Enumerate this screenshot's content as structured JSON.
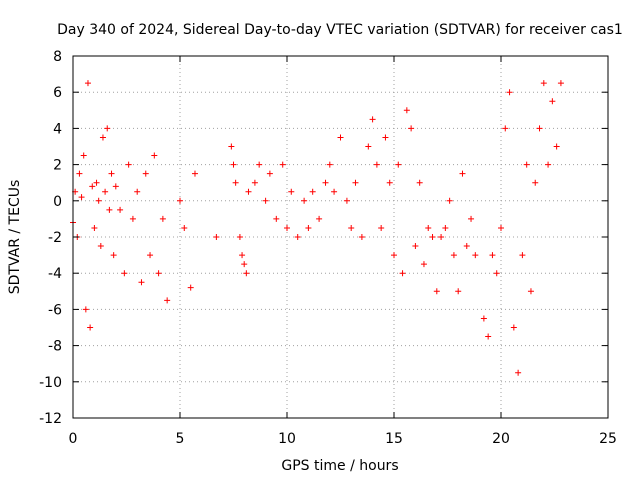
{
  "chart_data": {
    "type": "scatter",
    "title": "Day 340 of 2024, Sidereal Day-to-day VTEC variation (SDTVAR) for receiver cas1",
    "xlabel": "GPS time / hours",
    "ylabel": "SDTVAR / TECUs",
    "xlim": [
      0,
      25
    ],
    "ylim": [
      -12,
      8
    ],
    "xticks": [
      "0",
      "5",
      "10",
      "15",
      "20",
      "25"
    ],
    "yticks": [
      "-12",
      "-10",
      "-8",
      "-6",
      "-4",
      "-2",
      "0",
      "2",
      "4",
      "6",
      "8"
    ],
    "grid": true,
    "marker": "+",
    "series_color": "#ff0000",
    "series": [
      {
        "name": "SDTVAR",
        "x": [
          0.0,
          0.1,
          0.2,
          0.3,
          0.4,
          0.5,
          0.6,
          0.7,
          0.8,
          0.9,
          1.0,
          1.1,
          1.2,
          1.3,
          1.4,
          1.5,
          1.6,
          1.7,
          1.8,
          1.9,
          2.0,
          2.2,
          2.4,
          2.6,
          2.8,
          3.0,
          3.2,
          3.4,
          3.6,
          3.8,
          4.0,
          4.2,
          4.4,
          5.0,
          5.2,
          5.5,
          5.7,
          6.7,
          7.4,
          7.5,
          7.6,
          7.8,
          7.9,
          8.0,
          8.1,
          8.2,
          8.5,
          8.7,
          9.0,
          9.2,
          9.5,
          9.8,
          10.0,
          10.2,
          10.5,
          10.8,
          11.0,
          11.2,
          11.5,
          11.8,
          12.0,
          12.2,
          12.5,
          12.8,
          13.0,
          13.2,
          13.5,
          13.8,
          14.0,
          14.2,
          14.4,
          14.6,
          14.8,
          15.0,
          15.2,
          15.4,
          15.6,
          15.8,
          16.0,
          16.2,
          16.4,
          16.6,
          16.8,
          17.0,
          17.2,
          17.4,
          17.6,
          17.8,
          18.0,
          18.2,
          18.4,
          18.6,
          18.8,
          19.2,
          19.4,
          19.6,
          19.8,
          20.0,
          20.2,
          20.4,
          20.6,
          20.8,
          21.0,
          21.2,
          21.4,
          21.6,
          21.8,
          22.0,
          22.2,
          22.4,
          22.6,
          22.8
        ],
        "y": [
          -1.2,
          0.5,
          -2.0,
          1.5,
          0.2,
          2.5,
          -6.0,
          6.5,
          -7.0,
          0.8,
          -1.5,
          1.0,
          0.0,
          -2.5,
          3.5,
          0.5,
          4.0,
          -0.5,
          1.5,
          -3.0,
          0.8,
          -0.5,
          -4.0,
          2.0,
          -1.0,
          0.5,
          -4.5,
          1.5,
          -3.0,
          2.5,
          -4.0,
          -1.0,
          -5.5,
          0.0,
          -1.5,
          -4.8,
          1.5,
          -2.0,
          3.0,
          2.0,
          1.0,
          -2.0,
          -3.0,
          -3.5,
          -4.0,
          0.5,
          1.0,
          2.0,
          0.0,
          1.5,
          -1.0,
          2.0,
          -1.5,
          0.5,
          -2.0,
          0.0,
          -1.5,
          0.5,
          -1.0,
          1.0,
          2.0,
          0.5,
          3.5,
          0.0,
          -1.5,
          1.0,
          -2.0,
          3.0,
          4.5,
          2.0,
          -1.5,
          3.5,
          1.0,
          -3.0,
          2.0,
          -4.0,
          5.0,
          4.0,
          -2.5,
          1.0,
          -3.5,
          -1.5,
          -2.0,
          -5.0,
          -2.0,
          -1.5,
          0.0,
          -3.0,
          -5.0,
          1.5,
          -2.5,
          -1.0,
          -3.0,
          -6.5,
          -7.5,
          -3.0,
          -4.0,
          -1.5,
          4.0,
          6.0,
          -7.0,
          -9.5,
          -3.0,
          2.0,
          -5.0,
          1.0,
          4.0,
          6.5,
          2.0,
          5.5,
          3.0,
          6.5
        ]
      }
    ]
  }
}
